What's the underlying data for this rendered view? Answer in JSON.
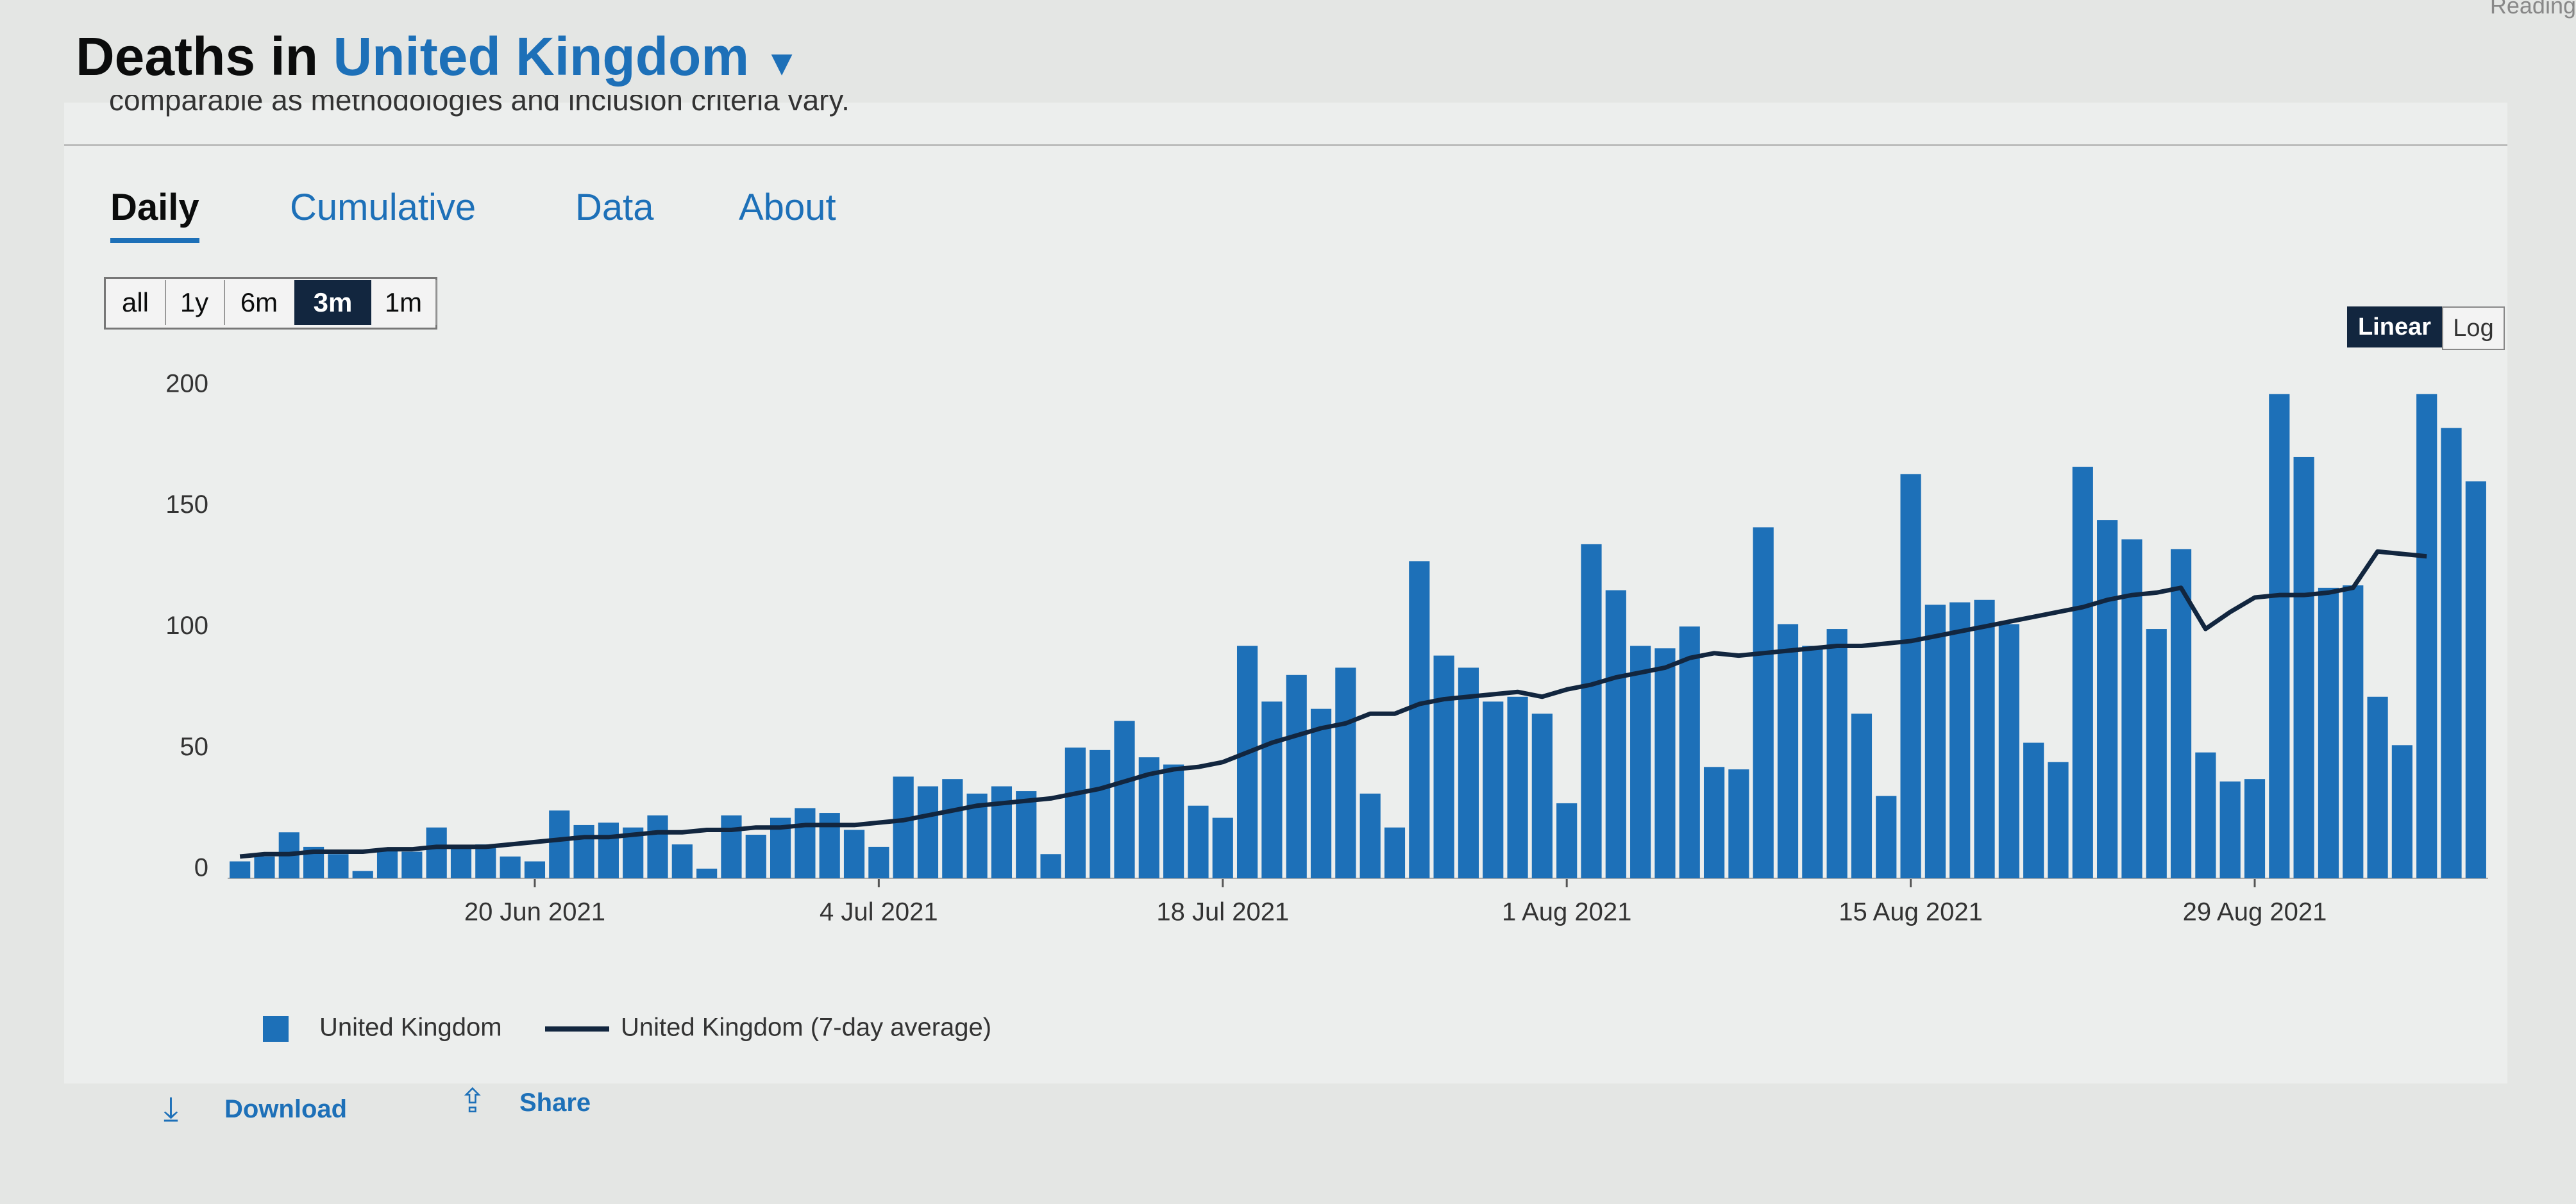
{
  "header": {
    "title": "Deaths in",
    "country": "United Kingdom",
    "reading": "Reading"
  },
  "subtitle": "comparable as methodologies and inclusion criteria vary.",
  "tabs": [
    "Daily",
    "Cumulative",
    "Data",
    "About"
  ],
  "range_buttons": [
    "all",
    "1y",
    "6m",
    "3m",
    "1m"
  ],
  "scale_buttons": [
    "Linear",
    "Log"
  ],
  "actions": [
    "Download",
    "Share"
  ],
  "chart_data": {
    "type": "bar",
    "categories": [
      null,
      null,
      null,
      null,
      null,
      null,
      null,
      null,
      null,
      null,
      null,
      null,
      "20 Jun 2021",
      null,
      null,
      null,
      null,
      null,
      null,
      null,
      null,
      null,
      null,
      null,
      null,
      null,
      "4 Jul 2021",
      null,
      null,
      null,
      null,
      null,
      null,
      null,
      null,
      null,
      null,
      null,
      null,
      null,
      "18 Jul 2021",
      null,
      null,
      null,
      null,
      null,
      null,
      null,
      null,
      null,
      null,
      null,
      null,
      null,
      "1 Aug 2021",
      null,
      null,
      null,
      null,
      null,
      null,
      null,
      null,
      null,
      null,
      null,
      null,
      null,
      "15 Aug 2021",
      null,
      null,
      null,
      null,
      null,
      null,
      null,
      null,
      null,
      null,
      null,
      null,
      null,
      "29 Aug 2021",
      null,
      null,
      null,
      null,
      null,
      null,
      null,
      null,
      null
    ],
    "series": [
      {
        "name": "United Kingdom",
        "color": "#1d70b8",
        "values": [
          7,
          9,
          19,
          13,
          10,
          3,
          12,
          11,
          21,
          13,
          14,
          9,
          7,
          28,
          22,
          23,
          21,
          26,
          14,
          4,
          26,
          18,
          25,
          29,
          27,
          20,
          13,
          42,
          38,
          41,
          35,
          38,
          36,
          10,
          54,
          53,
          65,
          50,
          47,
          30,
          25,
          96,
          73,
          84,
          70,
          87,
          35,
          21,
          131,
          92,
          87,
          73,
          75,
          68,
          31,
          138,
          119,
          96,
          95,
          104,
          46,
          45,
          145,
          105,
          96,
          103,
          68,
          34,
          167,
          113,
          114,
          115,
          105,
          56,
          48,
          170,
          148,
          140,
          103,
          136,
          52,
          40,
          41,
          200,
          174,
          120,
          121,
          75,
          55,
          200,
          186,
          164
        ]
      },
      {
        "name": "United Kingdom (7-day average)",
        "color": "#12263f",
        "type": "line",
        "values": [
          9,
          10,
          10,
          11,
          11,
          11,
          12,
          12,
          13,
          13,
          13,
          14,
          15,
          16,
          17,
          17,
          18,
          19,
          19,
          20,
          20,
          21,
          21,
          22,
          22,
          22,
          23,
          24,
          26,
          28,
          30,
          31,
          32,
          33,
          35,
          37,
          40,
          43,
          45,
          46,
          48,
          52,
          56,
          59,
          62,
          64,
          68,
          68,
          72,
          74,
          75,
          76,
          77,
          75,
          78,
          80,
          83,
          85,
          87,
          91,
          93,
          92,
          93,
          94,
          95,
          96,
          96,
          97,
          98,
          100,
          102,
          104,
          106,
          108,
          110,
          112,
          115,
          117,
          118,
          120,
          103,
          110,
          116,
          117,
          117,
          118,
          120,
          135,
          134,
          133,
          null,
          null
        ]
      }
    ],
    "ylim": [
      0,
      210
    ],
    "yticks": [
      0,
      50,
      100,
      150,
      200
    ],
    "grid": false
  }
}
